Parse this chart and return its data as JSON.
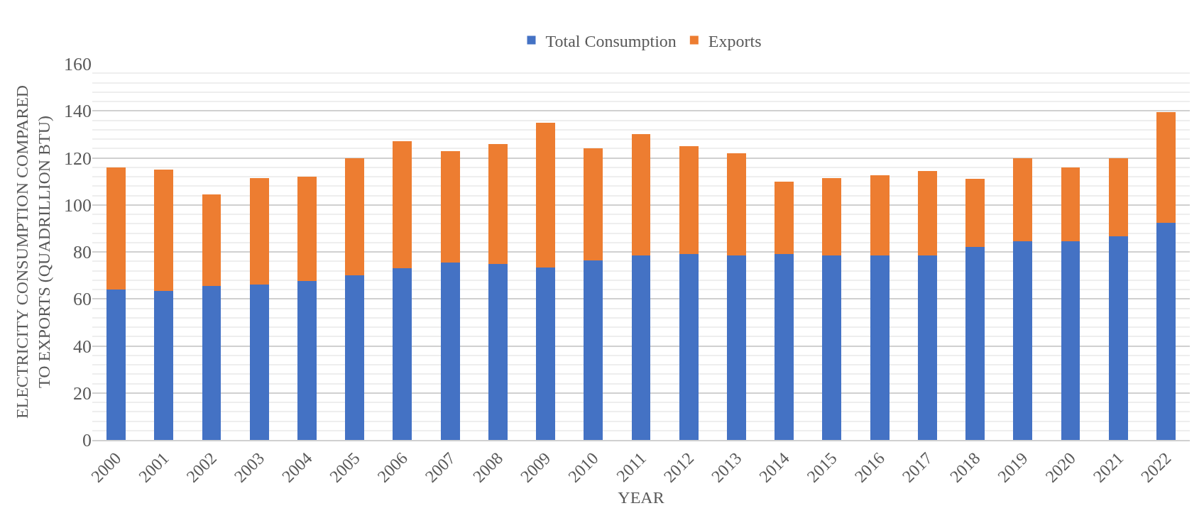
{
  "chart_data": {
    "type": "bar",
    "stacked": true,
    "xlabel": "YEAR",
    "ylabel": "ELECTRICITY CONSUMPTION COMPARED TO EXPORTS (QUADRILLION BTU)",
    "categories": [
      "2000",
      "2001",
      "2002",
      "2003",
      "2004",
      "2005",
      "2006",
      "2007",
      "2008",
      "2009",
      "2010",
      "2011",
      "2012",
      "2013",
      "2014",
      "2015",
      "2016",
      "2017",
      "2018",
      "2019",
      "2020",
      "2021",
      "2022"
    ],
    "series": [
      {
        "name": "Total Consumption",
        "color": "#4472c4",
        "values": [
          64,
          63.5,
          65.5,
          66,
          67.5,
          70,
          73,
          75.5,
          75,
          73.5,
          76.5,
          78.5,
          79,
          78.5,
          79,
          78.5,
          78.5,
          78.5,
          82,
          84.5,
          84.5,
          86.5,
          92.5
        ]
      },
      {
        "name": "Exports",
        "color": "#ed7d31",
        "values": [
          52,
          51.5,
          39,
          45.5,
          44.5,
          50,
          54,
          47.5,
          51,
          61.5,
          47.5,
          51.5,
          46,
          43.5,
          31,
          33,
          34,
          36,
          29,
          35.5,
          31.5,
          33.5,
          47
        ]
      }
    ],
    "ylim": [
      0,
      160
    ],
    "yticks": [
      0,
      20,
      40,
      60,
      80,
      100,
      120,
      140,
      160
    ],
    "grid": "y",
    "legend": "top"
  }
}
